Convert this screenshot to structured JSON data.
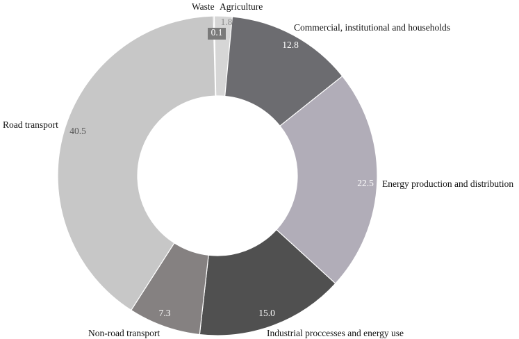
{
  "chart_data": {
    "type": "pie",
    "donut": true,
    "title": "",
    "legend": "none",
    "start_angle_deg": -1.5,
    "slices": [
      {
        "label": "Waste",
        "value": 0.1,
        "value_text": "0.1",
        "color": "#7a7a7a",
        "value_color": "#ffffff"
      },
      {
        "label": "Agriculture",
        "value": 1.8,
        "value_text": "1.8",
        "color": "#d6d6d6",
        "value_color": "#8a8a8a"
      },
      {
        "label": "Commercial, institutional and households",
        "value": 12.8,
        "value_text": "12.8",
        "color": "#6c6c70",
        "value_color": "#ffffff"
      },
      {
        "label": "Energy production and distribution",
        "value": 22.5,
        "value_text": "22.5",
        "color": "#b1adb8",
        "value_color": "#ffffff"
      },
      {
        "label": "Industrial proccesses and energy use",
        "value": 15.0,
        "value_text": "15.0",
        "color": "#505050",
        "value_color": "#ffffff"
      },
      {
        "label": "Non-road transport",
        "value": 7.3,
        "value_text": "7.3",
        "color": "#858181",
        "value_color": "#ffffff"
      },
      {
        "label": "Road transport",
        "value": 40.5,
        "value_text": "40.5",
        "color": "#c7c7c7",
        "value_color": "#555555"
      }
    ]
  }
}
